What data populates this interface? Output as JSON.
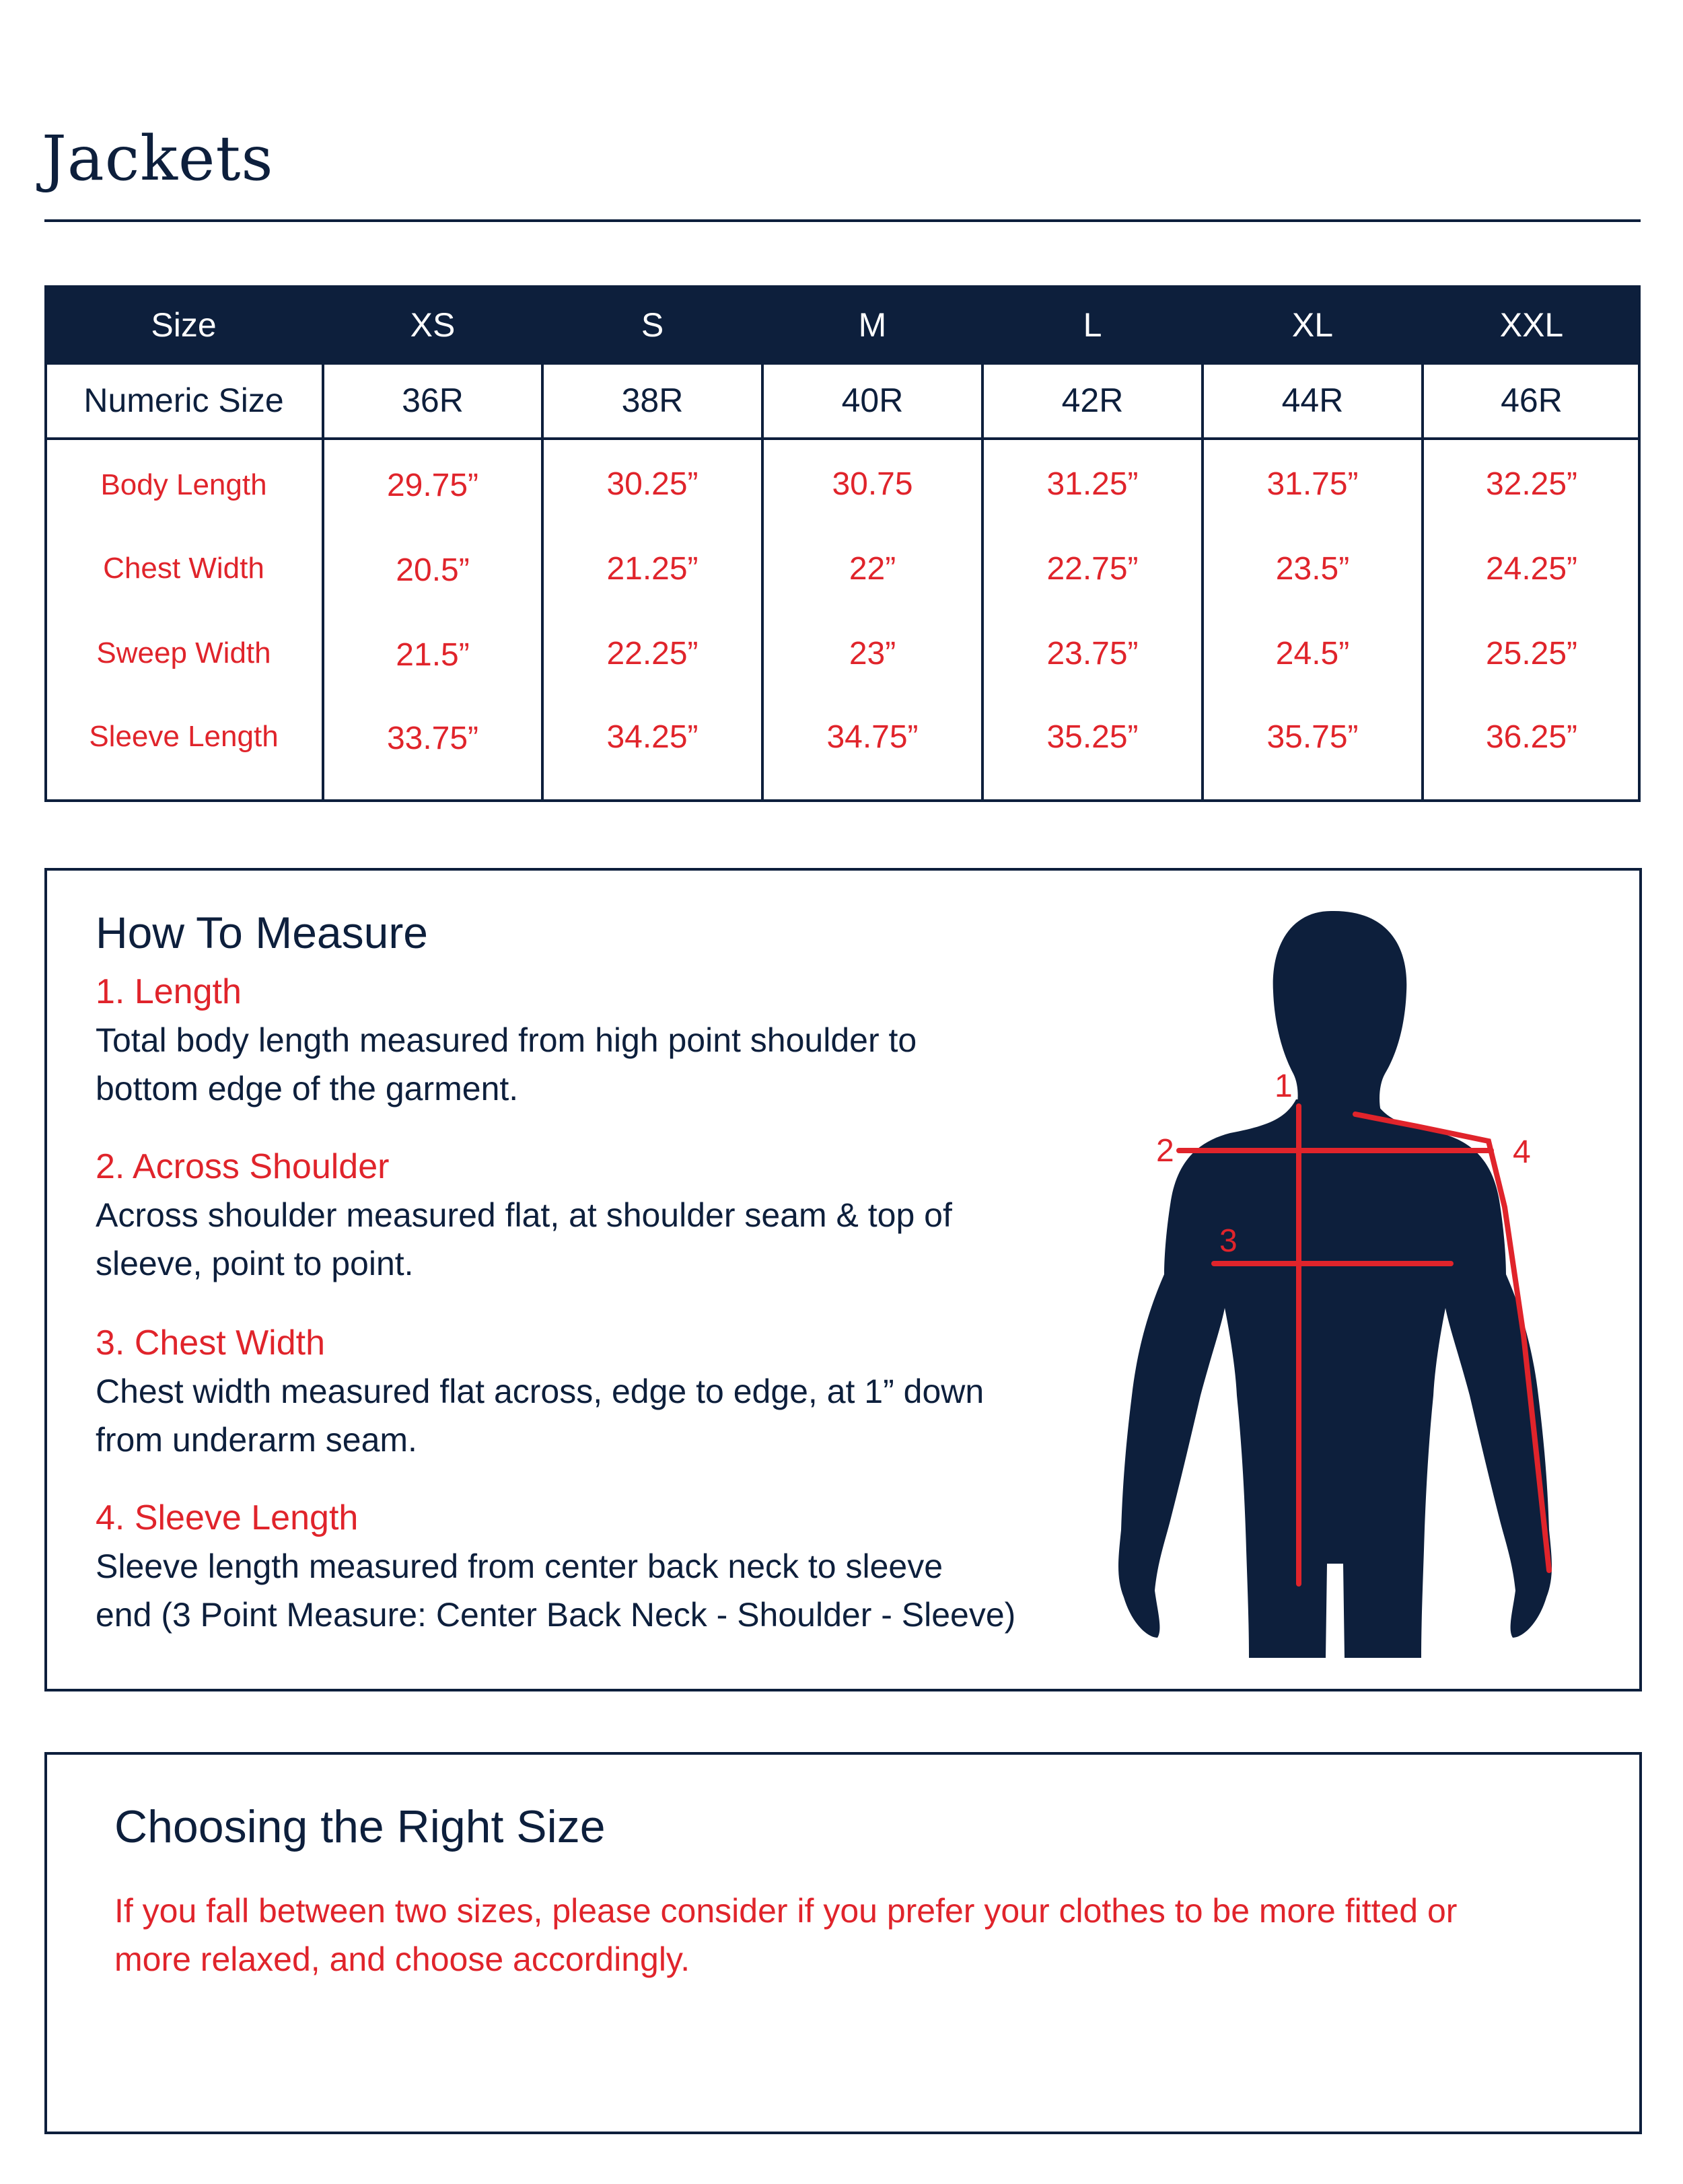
{
  "page_title": "Jackets",
  "colors": {
    "navy": "#0d1f3c",
    "red": "#e0242b",
    "white": "#ffffff"
  },
  "size_table": {
    "header_label": "Size",
    "sizes": [
      "XS",
      "S",
      "M",
      "L",
      "XL",
      "XXL"
    ],
    "numeric_label": "Numeric Size",
    "numeric_sizes": [
      "36R",
      "38R",
      "40R",
      "42R",
      "44R",
      "46R"
    ],
    "rows": [
      {
        "label": "Body Length",
        "values": [
          "29.75”",
          "30.25”",
          "30.75",
          "31.25”",
          "31.75”",
          "32.25”"
        ]
      },
      {
        "label": "Chest Width",
        "values": [
          "20.5”",
          "21.25”",
          "22”",
          "22.75”",
          "23.5”",
          "24.25”"
        ]
      },
      {
        "label": "Sweep Width",
        "values": [
          "21.5”",
          "22.25”",
          "23”",
          "23.75”",
          "24.5”",
          "25.25”"
        ]
      },
      {
        "label": "Sleeve Length",
        "values": [
          "33.75”",
          "34.25”",
          "34.75”",
          "35.25”",
          "35.75”",
          "36.25”"
        ]
      }
    ]
  },
  "how_to_measure": {
    "heading": "How To Measure",
    "steps": [
      {
        "title": "1. Length",
        "lines": [
          "Total body length measured from high point shoulder to",
          "bottom edge of the garment."
        ]
      },
      {
        "title": "2. Across Shoulder",
        "lines": [
          "Across shoulder measured flat, at shoulder seam & top of",
          "sleeve, point to point."
        ]
      },
      {
        "title": "3. Chest Width",
        "lines": [
          "Chest width measured flat across, edge to edge, at 1” down",
          "from underarm seam."
        ]
      },
      {
        "title": "4. Sleeve Length",
        "lines": [
          "Sleeve length measured from center back neck to sleeve",
          "end (3 Point Measure: Center Back Neck - Shoulder - Sleeve)"
        ]
      }
    ],
    "figure": {
      "icon": "human-torso-silhouette-icon",
      "markers": [
        "1",
        "2",
        "3",
        "4"
      ]
    }
  },
  "choosing": {
    "heading": "Choosing the Right Size",
    "lines": [
      "If you fall between two sizes, please consider if you prefer your clothes to be more fitted or",
      "more relaxed, and choose accordingly."
    ]
  }
}
